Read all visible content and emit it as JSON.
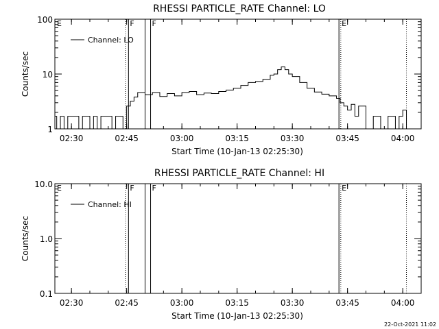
{
  "chart_data": [
    {
      "type": "line",
      "title": "RHESSI PARTICLE_RATE Channel: LO",
      "xlabel": "Start Time (10-Jan-13 02:25:30)",
      "ylabel": "Counts/sec",
      "yscale": "log",
      "ylim": [
        1,
        100
      ],
      "xlim": [
        "02:25:30",
        "04:05:00"
      ],
      "xticks": [
        "02:30",
        "02:45",
        "03:00",
        "03:15",
        "03:30",
        "03:45",
        "04:00"
      ],
      "yticks": [
        "1",
        "10",
        "100"
      ],
      "legend": {
        "label": "Channel: LO",
        "placement": "top-left"
      },
      "series": [
        {
          "name": "Channel: LO",
          "x": [
            "02:25:30",
            "02:26:00",
            "02:27:00",
            "02:28:00",
            "02:29:00",
            "02:30:00",
            "02:31:00",
            "02:32:00",
            "02:33:00",
            "02:34:00",
            "02:35:00",
            "02:36:00",
            "02:37:00",
            "02:38:00",
            "02:39:00",
            "02:40:00",
            "02:41:00",
            "02:42:00",
            "02:43:00",
            "02:44:00",
            "02:45:00",
            "02:46:00",
            "02:47:00",
            "02:48:00",
            "02:50:00",
            "02:52:00",
            "02:54:00",
            "02:56:00",
            "02:58:00",
            "03:00:00",
            "03:02:00",
            "03:04:00",
            "03:06:00",
            "03:08:00",
            "03:10:00",
            "03:12:00",
            "03:14:00",
            "03:16:00",
            "03:18:00",
            "03:20:00",
            "03:22:00",
            "03:24:00",
            "03:25:00",
            "03:26:00",
            "03:27:00",
            "03:28:00",
            "03:29:00",
            "03:30:00",
            "03:32:00",
            "03:34:00",
            "03:36:00",
            "03:38:00",
            "03:40:00",
            "03:42:00",
            "03:43:00",
            "03:44:00",
            "03:45:00",
            "03:46:00",
            "03:47:00",
            "03:48:00",
            "03:50:00",
            "03:52:00",
            "03:54:00",
            "03:56:00",
            "03:58:00",
            "03:59:00",
            "04:00:00",
            "04:01:00"
          ],
          "values": [
            1.7,
            1,
            1.7,
            1,
            1.7,
            1.7,
            1.7,
            1,
            1.7,
            1.7,
            1,
            1.7,
            1,
            1.7,
            1.7,
            1.7,
            1,
            1.7,
            1.7,
            1,
            2.6,
            3.2,
            3.8,
            4.6,
            4.2,
            4.6,
            3.9,
            4.4,
            4.0,
            4.6,
            4.8,
            4.2,
            4.5,
            4.4,
            4.8,
            5.1,
            5.5,
            6.2,
            7.0,
            7.3,
            8.0,
            9.5,
            10.0,
            12.0,
            13.5,
            12.0,
            10.0,
            9.0,
            7.0,
            5.5,
            4.7,
            4.3,
            4.0,
            3.6,
            3.0,
            2.6,
            2.2,
            2.8,
            1.7,
            2.6,
            1,
            1.7,
            1,
            1.7,
            1,
            1.7,
            2.2,
            1
          ]
        }
      ],
      "annotations": [
        "E",
        "F",
        "F",
        "E"
      ]
    },
    {
      "type": "line",
      "title": "RHESSI PARTICLE_RATE Channel: HI",
      "xlabel": "Start Time (10-Jan-13 02:25:30)",
      "ylabel": "Counts/sec",
      "yscale": "log",
      "ylim": [
        0.1,
        10
      ],
      "xlim": [
        "02:25:30",
        "04:05:00"
      ],
      "xticks": [
        "02:30",
        "02:45",
        "03:00",
        "03:15",
        "03:30",
        "03:45",
        "04:00"
      ],
      "yticks": [
        "0.1",
        "1.0",
        "10.0"
      ],
      "legend": {
        "label": "Channel: HI",
        "placement": "top-left"
      },
      "series": [
        {
          "name": "Channel: HI",
          "x": [],
          "values": []
        }
      ],
      "annotations": [
        "E",
        "F",
        "F",
        "E"
      ]
    }
  ],
  "markers": {
    "dotted": [
      "02:44:40",
      "03:43:10",
      "04:01:00"
    ],
    "solid": [
      "02:45:30",
      "02:50:00",
      "02:51:30",
      "03:42:40"
    ]
  },
  "timestamp": "22-Oct-2021 11:02"
}
